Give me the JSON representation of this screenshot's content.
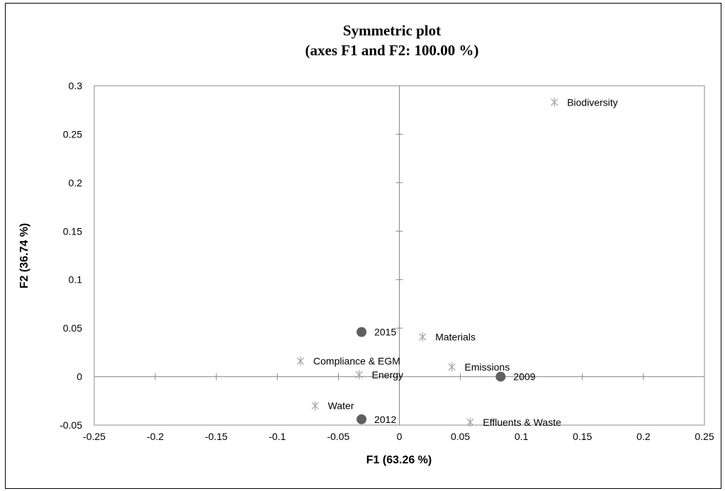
{
  "chart_data": {
    "type": "scatter",
    "title": "Symmetric plot",
    "subtitle": "(axes F1 and F2: 100.00 %)",
    "xlabel": "F1 (63.26 %)",
    "ylabel": "F2 (36.74 %)",
    "xlim": [
      -0.25,
      0.25
    ],
    "ylim": [
      -0.05,
      0.3
    ],
    "x_ticks": [
      "-0.25",
      "-0.2",
      "-0.15",
      "-0.1",
      "-0.05",
      "0",
      "0.05",
      "0.1",
      "0.15",
      "0.2",
      "0.25"
    ],
    "y_ticks": [
      "-0.05",
      "0",
      "0.05",
      "0.1",
      "0.15",
      "0.2",
      "0.25",
      "0.3"
    ],
    "grid": false,
    "series": [
      {
        "marker": "circle",
        "color": "#5f5f5f",
        "points": [
          {
            "label": "2015",
            "x": -0.031,
            "y": 0.046
          },
          {
            "label": "2009",
            "x": 0.083,
            "y": 0.0
          },
          {
            "label": "2012",
            "x": -0.031,
            "y": -0.044
          }
        ]
      },
      {
        "marker": "asterisk",
        "color": "#a6a6a6",
        "points": [
          {
            "label": "Biodiversity",
            "x": 0.127,
            "y": 0.283
          },
          {
            "label": "Materials",
            "x": 0.019,
            "y": 0.041
          },
          {
            "label": "Compliance & EGM",
            "x": -0.081,
            "y": 0.016
          },
          {
            "label": "Energy",
            "x": -0.033,
            "y": 0.002
          },
          {
            "label": "Emissions",
            "x": 0.043,
            "y": 0.01
          },
          {
            "label": "Water",
            "x": -0.069,
            "y": -0.03
          },
          {
            "label": "Effluents & Waste",
            "x": 0.058,
            "y": -0.047
          }
        ]
      }
    ]
  }
}
